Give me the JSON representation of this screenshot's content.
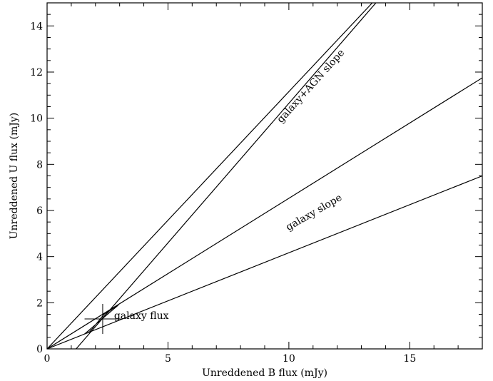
{
  "chart_data": {
    "type": "line",
    "title": "",
    "xlabel": "Unreddened B flux (mJy)",
    "ylabel": "Unreddened U flux (mJy)",
    "xlim": [
      0,
      18
    ],
    "ylim": [
      0,
      15
    ],
    "x_ticks": [
      0,
      5,
      10,
      15
    ],
    "y_ticks": [
      0,
      2,
      4,
      6,
      8,
      10,
      12,
      14
    ],
    "grid": false,
    "lines": [
      {
        "role": "agn-slope-upper",
        "points": [
          [
            0,
            0
          ],
          [
            13.45,
            15
          ]
        ]
      },
      {
        "role": "agn-slope-lower",
        "points": [
          [
            1.2,
            0
          ],
          [
            13.6,
            15
          ]
        ]
      },
      {
        "role": "galaxy-slope-upper",
        "points": [
          [
            0,
            0
          ],
          [
            18,
            11.75
          ]
        ]
      },
      {
        "role": "galaxy-slope-lower",
        "points": [
          [
            0,
            0
          ],
          [
            18,
            7.5
          ]
        ]
      }
    ],
    "shaded_region": [
      [
        1.55,
        0.65
      ],
      [
        2.95,
        1.9
      ],
      [
        2.35,
        1.5
      ],
      [
        1.75,
        0.72
      ]
    ],
    "point": {
      "x": 2.3,
      "y": 1.3,
      "xerr": 0.75,
      "yerr": 0.65
    },
    "annotations": [
      {
        "text": "galaxy+AGN slope",
        "x": 11.0,
        "y": 11.3,
        "angle": 48
      },
      {
        "text": "galaxy slope",
        "x": 11.1,
        "y": 5.8,
        "angle": 30
      },
      {
        "text": "galaxy flux",
        "x": 3.9,
        "y": 1.3,
        "angle": 0
      }
    ]
  }
}
